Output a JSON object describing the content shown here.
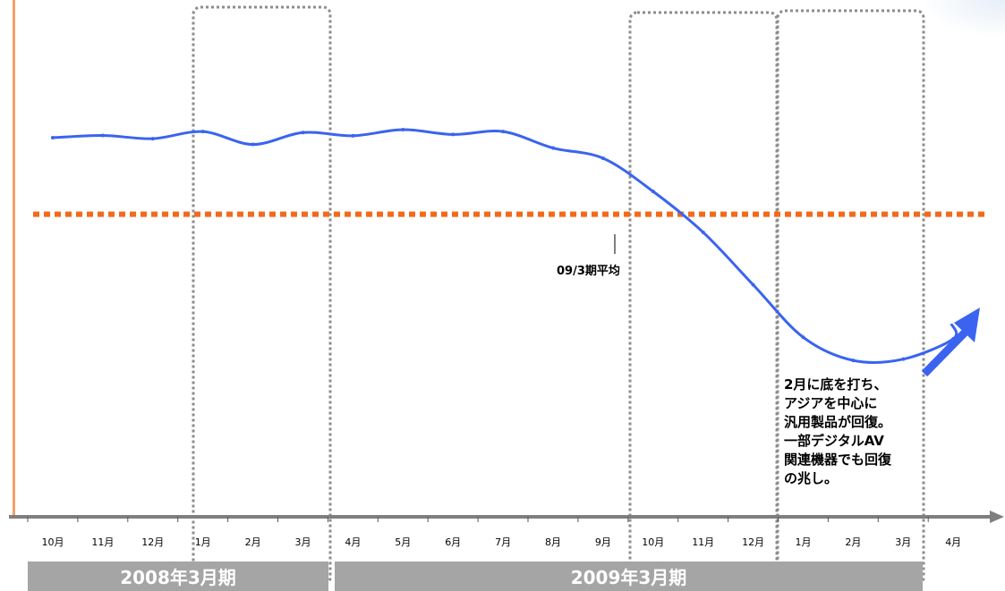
{
  "chart_data": {
    "type": "line",
    "categories": [
      "10月",
      "11月",
      "12月",
      "1月",
      "2月",
      "3月",
      "4月",
      "5月",
      "6月",
      "7月",
      "8月",
      "9月",
      "10月",
      "11月",
      "12月",
      "1月",
      "2月",
      "3月",
      "4月"
    ],
    "series": [
      {
        "values": [
          100.0,
          100.7,
          99.7,
          101.9,
          97.9,
          101.6,
          100.6,
          102.5,
          101.0,
          101.9,
          96.8,
          93.6,
          83.3,
          70.6,
          54.3,
          38.0,
          30.8,
          31.2,
          37.5
        ]
      }
    ],
    "extra_points": [
      {
        "after": "4月",
        "value": 42.2,
        "note": "last line point before right edge"
      }
    ],
    "reference_line": {
      "value": 76.2,
      "label": "09/3期平均",
      "color": "#f26a1b"
    },
    "periods": [
      "2008年3月期",
      "2009年3月期"
    ],
    "annotation": "2月に底を打ち、\nアジアを中心に\n汎用製品が回復。\n一部デジタルAV\n関連機器でも回復\nの兆し。",
    "line_color": "#3a64ef",
    "arrow_color": "#3a64ef",
    "axis_color": "#7f7f7f",
    "highlight_box_color": "#8c8c8c",
    "highlighted_months": [
      "1月〜3月 (2008年3月期)",
      "10月〜12月 (2009年3月期)",
      "1月〜3月 (2009年3月期)"
    ]
  }
}
